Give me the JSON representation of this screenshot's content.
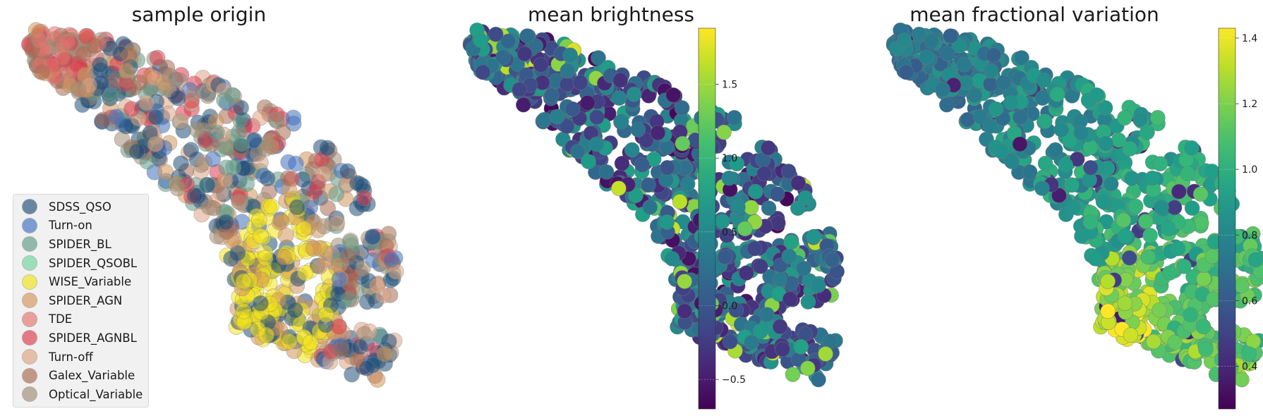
{
  "chart_data": [
    {
      "type": "scatter",
      "title": "sample origin",
      "legend_placement": "lower-left",
      "grid": false,
      "series": [
        {
          "name": "SDSS_QSO",
          "color": "#1f4e79"
        },
        {
          "name": "Turn-on",
          "color": "#3f6fbf"
        },
        {
          "name": "SPIDER_BL",
          "color": "#5f9b85"
        },
        {
          "name": "SPIDER_QSOBL",
          "color": "#6fd49a"
        },
        {
          "name": "WISE_Variable",
          "color": "#f2e41a"
        },
        {
          "name": "SPIDER_AGN",
          "color": "#d4965a"
        },
        {
          "name": "TDE",
          "color": "#e4746e"
        },
        {
          "name": "SPIDER_AGNBL",
          "color": "#dc3a4c"
        },
        {
          "name": "Turn-off",
          "color": "#dca483"
        },
        {
          "name": "Galex_Variable",
          "color": "#a86a50"
        },
        {
          "name": "Optical_Variable",
          "color": "#a08c74"
        }
      ]
    },
    {
      "type": "scatter",
      "title": "mean brightness",
      "colormap": "viridis",
      "colorbar": {
        "range": [
          -0.7,
          1.88
        ],
        "ticks": [
          "−0.5",
          "0.0",
          "0.5",
          "1.0",
          "1.5"
        ],
        "tick_values": [
          -0.5,
          0.0,
          0.5,
          1.0,
          1.5
        ]
      }
    },
    {
      "type": "scatter",
      "title": "mean fractional variation",
      "colormap": "viridis",
      "colorbar": {
        "range": [
          0.27,
          1.43
        ],
        "ticks": [
          "0.4",
          "0.6",
          "0.8",
          "1.0",
          "1.2",
          "1.4"
        ],
        "tick_values": [
          0.4,
          0.6,
          0.8,
          1.0,
          1.2,
          1.4
        ]
      }
    }
  ]
}
